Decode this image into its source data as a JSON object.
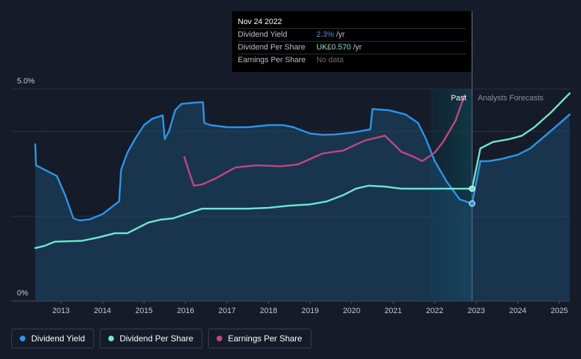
{
  "tooltip": {
    "date": "Nov 24 2022",
    "rows": [
      {
        "label": "Dividend Yield",
        "value": "2.3%",
        "unit": "/yr"
      },
      {
        "label": "Dividend Per Share",
        "value": "UK£0.570",
        "unit": "/yr"
      },
      {
        "label": "Earnings Per Share",
        "value": "No data",
        "unit": ""
      }
    ]
  },
  "regions": {
    "past": "Past",
    "forecast": "Analysts Forecasts"
  },
  "legend": [
    {
      "label": "Dividend Yield",
      "color": "#2b96e8"
    },
    {
      "label": "Dividend Per Share",
      "color": "#6ee7d1"
    },
    {
      "label": "Earnings Per Share",
      "color": "#c2477f"
    }
  ],
  "chart_data": {
    "type": "line",
    "ylim": [
      0,
      5.0
    ],
    "y_tick_labels": [
      "5.0%",
      "0%"
    ],
    "y_tick_values": [
      5.0,
      0
    ],
    "xlim": [
      2012.35,
      2025.25
    ],
    "x_ticks": [
      2013,
      2014,
      2015,
      2016,
      2017,
      2018,
      2019,
      2020,
      2021,
      2022,
      2023,
      2024,
      2025
    ],
    "x_tick_labels": [
      "2013",
      "2014",
      "2015",
      "2016",
      "2017",
      "2018",
      "2019",
      "2020",
      "2021",
      "2022",
      "2023",
      "2024",
      "2025"
    ],
    "highlight_range": [
      2021.9,
      2022.9
    ],
    "now": 2022.9,
    "grid": true,
    "series": [
      {
        "name": "Dividend Yield",
        "color": "#2b96e8",
        "area": true,
        "points": [
          [
            2012.38,
            3.7
          ],
          [
            2012.4,
            3.2
          ],
          [
            2012.6,
            3.1
          ],
          [
            2012.9,
            2.95
          ],
          [
            2013.1,
            2.5
          ],
          [
            2013.3,
            1.95
          ],
          [
            2013.45,
            1.9
          ],
          [
            2013.7,
            1.93
          ],
          [
            2014.0,
            2.05
          ],
          [
            2014.2,
            2.2
          ],
          [
            2014.4,
            2.35
          ],
          [
            2014.45,
            3.1
          ],
          [
            2014.6,
            3.5
          ],
          [
            2014.8,
            3.85
          ],
          [
            2015.0,
            4.15
          ],
          [
            2015.2,
            4.3
          ],
          [
            2015.45,
            4.38
          ],
          [
            2015.5,
            3.82
          ],
          [
            2015.6,
            4.0
          ],
          [
            2015.75,
            4.5
          ],
          [
            2015.9,
            4.65
          ],
          [
            2016.2,
            4.68
          ],
          [
            2016.42,
            4.69
          ],
          [
            2016.45,
            4.2
          ],
          [
            2016.6,
            4.15
          ],
          [
            2017.0,
            4.1
          ],
          [
            2017.5,
            4.1
          ],
          [
            2018.0,
            4.15
          ],
          [
            2018.35,
            4.15
          ],
          [
            2018.6,
            4.1
          ],
          [
            2019.0,
            3.95
          ],
          [
            2019.3,
            3.92
          ],
          [
            2019.6,
            3.93
          ],
          [
            2020.0,
            3.97
          ],
          [
            2020.45,
            4.05
          ],
          [
            2020.5,
            4.53
          ],
          [
            2020.9,
            4.5
          ],
          [
            2021.3,
            4.4
          ],
          [
            2021.6,
            4.2
          ],
          [
            2021.8,
            3.8
          ],
          [
            2022.0,
            3.3
          ],
          [
            2022.3,
            2.8
          ],
          [
            2022.6,
            2.4
          ],
          [
            2022.9,
            2.3
          ],
          [
            2023.1,
            3.3
          ],
          [
            2023.3,
            3.3
          ],
          [
            2023.6,
            3.35
          ],
          [
            2024.0,
            3.45
          ],
          [
            2024.3,
            3.6
          ],
          [
            2024.6,
            3.85
          ],
          [
            2024.9,
            4.1
          ],
          [
            2025.25,
            4.4
          ]
        ]
      },
      {
        "name": "Dividend Per Share",
        "color": "#6ee7d1",
        "area": false,
        "points": [
          [
            2012.38,
            1.25
          ],
          [
            2012.6,
            1.3
          ],
          [
            2012.85,
            1.4
          ],
          [
            2013.5,
            1.42
          ],
          [
            2013.9,
            1.5
          ],
          [
            2014.3,
            1.6
          ],
          [
            2014.6,
            1.6
          ],
          [
            2014.8,
            1.7
          ],
          [
            2015.1,
            1.85
          ],
          [
            2015.4,
            1.92
          ],
          [
            2015.7,
            1.95
          ],
          [
            2016.0,
            2.05
          ],
          [
            2016.4,
            2.18
          ],
          [
            2017.0,
            2.18
          ],
          [
            2017.5,
            2.18
          ],
          [
            2018.0,
            2.2
          ],
          [
            2018.5,
            2.25
          ],
          [
            2019.0,
            2.28
          ],
          [
            2019.4,
            2.35
          ],
          [
            2019.8,
            2.5
          ],
          [
            2020.1,
            2.65
          ],
          [
            2020.4,
            2.72
          ],
          [
            2020.8,
            2.7
          ],
          [
            2021.2,
            2.65
          ],
          [
            2021.5,
            2.65
          ],
          [
            2022.0,
            2.65
          ],
          [
            2022.4,
            2.65
          ],
          [
            2022.9,
            2.65
          ],
          [
            2023.1,
            3.6
          ],
          [
            2023.4,
            3.75
          ],
          [
            2023.8,
            3.82
          ],
          [
            2024.1,
            3.9
          ],
          [
            2024.4,
            4.1
          ],
          [
            2024.8,
            4.45
          ],
          [
            2025.25,
            4.9
          ]
        ]
      },
      {
        "name": "Earnings Per Share",
        "color": "#c2477f",
        "area": false,
        "points": [
          [
            2015.97,
            3.4
          ],
          [
            2016.1,
            3.0
          ],
          [
            2016.2,
            2.72
          ],
          [
            2016.4,
            2.75
          ],
          [
            2016.7,
            2.88
          ],
          [
            2017.2,
            3.15
          ],
          [
            2017.7,
            3.2
          ],
          [
            2018.3,
            3.18
          ],
          [
            2018.7,
            3.22
          ],
          [
            2019.3,
            3.48
          ],
          [
            2019.8,
            3.55
          ],
          [
            2020.3,
            3.78
          ],
          [
            2020.8,
            3.9
          ],
          [
            2021.2,
            3.52
          ],
          [
            2021.5,
            3.4
          ],
          [
            2021.7,
            3.3
          ],
          [
            2022.0,
            3.5
          ],
          [
            2022.2,
            3.75
          ],
          [
            2022.5,
            4.25
          ],
          [
            2022.72,
            4.85
          ]
        ]
      }
    ],
    "markers": [
      {
        "series": "Dividend Per Share",
        "x": 2022.9,
        "y": 2.65
      },
      {
        "series": "Dividend Yield",
        "x": 2022.9,
        "y": 2.3
      }
    ]
  }
}
